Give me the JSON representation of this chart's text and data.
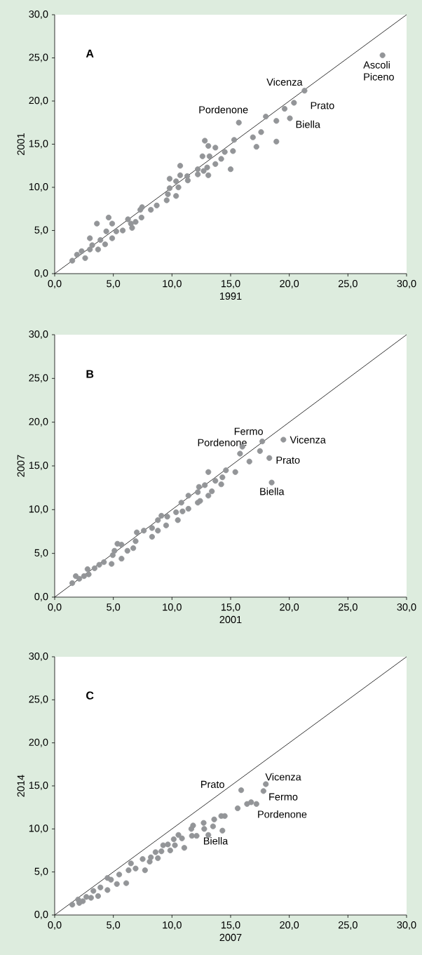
{
  "chart_data": [
    {
      "type": "scatter",
      "title": "A",
      "xlabel": "1991",
      "ylabel": "2001",
      "xlim": [
        0,
        30
      ],
      "ylim": [
        0,
        30
      ],
      "marker": "circle",
      "xticks": [
        {
          "value": 0,
          "label": "0,0"
        },
        {
          "value": 5,
          "label": "5,0"
        },
        {
          "value": 10,
          "label": "10,0"
        },
        {
          "value": 15,
          "label": "15,0"
        },
        {
          "value": 20,
          "label": "20,0"
        },
        {
          "value": 25,
          "label": "25,0"
        },
        {
          "value": 30,
          "label": "30,0"
        }
      ],
      "yticks": [
        {
          "value": 0,
          "label": "0,0"
        },
        {
          "value": 5,
          "label": "5,0"
        },
        {
          "value": 10,
          "label": "10,0"
        },
        {
          "value": 15,
          "label": "15,0"
        },
        {
          "value": 20,
          "label": "20,0"
        },
        {
          "value": 25,
          "label": "25,0"
        },
        {
          "value": 30,
          "label": "30,0"
        }
      ],
      "series": [
        {
          "color": "#939598",
          "x": [
            27.95,
            21.3,
            20.4,
            19.6,
            20.05,
            18.9,
            18.0,
            15.7,
            15.3,
            17.6,
            16.9,
            17.2,
            18.9,
            15.2,
            15.0,
            14.5,
            14.2,
            13.7,
            13.7,
            13.1,
            12.8,
            12.6,
            13.2,
            13.0,
            13.1,
            12.2,
            12.2,
            12.7,
            11.3,
            11.35,
            10.7,
            10.7,
            9.8,
            10.35,
            10.55,
            9.8,
            10.35,
            9.65,
            9.55,
            8.7,
            8.2,
            7.45,
            7.3,
            7.4,
            6.9,
            6.6,
            6.25,
            6.5,
            5.8,
            5.25,
            4.9,
            4.6,
            4.4,
            4.9,
            4.3,
            3.9,
            3.6,
            3.7,
            3.0,
            3.0,
            2.6,
            2.3,
            1.9,
            1.5,
            3.2
          ],
          "values": [
            25.3,
            21.2,
            19.8,
            19.1,
            18.0,
            17.7,
            18.2,
            17.5,
            15.5,
            16.4,
            15.8,
            14.7,
            15.3,
            14.2,
            12.1,
            14.1,
            13.3,
            14.6,
            12.7,
            14.8,
            15.4,
            13.6,
            13.6,
            12.3,
            11.4,
            12.1,
            11.5,
            11.9,
            11.3,
            10.8,
            12.5,
            11.4,
            11.0,
            10.7,
            10.0,
            9.9,
            9.0,
            9.2,
            8.5,
            7.9,
            7.4,
            7.7,
            7.4,
            6.5,
            6.0,
            5.3,
            6.3,
            5.8,
            5.0,
            4.9,
            5.8,
            6.5,
            4.9,
            4.1,
            3.4,
            3.9,
            5.8,
            2.8,
            4.1,
            2.8,
            1.8,
            2.6,
            2.2,
            1.5,
            3.3
          ]
        },
        {
          "type": "line",
          "color": "#000000",
          "marker": "none",
          "x": [
            0,
            30
          ],
          "values": [
            0,
            30
          ]
        }
      ],
      "annotations": [
        {
          "text": "Ascoli Piceno",
          "x": 27.95,
          "y": 25.3
        },
        {
          "text": "Vicenza",
          "x": 21.3,
          "y": 21.2
        },
        {
          "text": "Prato",
          "x": 20.4,
          "y": 19.8
        },
        {
          "text": "Biella",
          "x": 20.1,
          "y": 18.0
        },
        {
          "text": "Pordenone",
          "x": 15.7,
          "y": 17.5
        }
      ]
    },
    {
      "type": "scatter",
      "title": "B",
      "xlabel": "2001",
      "ylabel": "2007",
      "xlim": [
        0,
        30
      ],
      "ylim": [
        0,
        30
      ],
      "marker": "circle",
      "xticks": [
        {
          "value": 0,
          "label": "0,0"
        },
        {
          "value": 5,
          "label": "5,0"
        },
        {
          "value": 10,
          "label": "10,0"
        },
        {
          "value": 15,
          "label": "15,0"
        },
        {
          "value": 20,
          "label": "20,0"
        },
        {
          "value": 25,
          "label": "25,0"
        },
        {
          "value": 30,
          "label": "30,0"
        }
      ],
      "yticks": [
        {
          "value": 0,
          "label": "0,0"
        },
        {
          "value": 5,
          "label": "5,0"
        },
        {
          "value": 10,
          "label": "10,0"
        },
        {
          "value": 15,
          "label": "15,0"
        },
        {
          "value": 20,
          "label": "20,0"
        },
        {
          "value": 25,
          "label": "25,0"
        },
        {
          "value": 30,
          "label": "30,0"
        }
      ],
      "series": [
        {
          "color": "#939598",
          "x": [
            19.5,
            17.7,
            16.0,
            15.8,
            17.5,
            16.6,
            18.3,
            18.5,
            15.4,
            14.6,
            13.1,
            14.3,
            13.7,
            14.2,
            12.8,
            12.3,
            12.2,
            13.4,
            13.1,
            11.4,
            12.4,
            12.2,
            10.8,
            11.4,
            10.9,
            10.35,
            10.5,
            9.6,
            9.1,
            8.8,
            9.5,
            8.8,
            8.3,
            7.6,
            7.0,
            8.3,
            6.9,
            6.7,
            6.2,
            5.7,
            5.35,
            5.1,
            5.7,
            4.95,
            4.85,
            4.2,
            3.8,
            3.4,
            2.8,
            2.9,
            2.5,
            1.8,
            2.1,
            1.5
          ],
          "values": [
            18.0,
            17.8,
            17.2,
            16.4,
            16.7,
            15.5,
            15.9,
            13.1,
            14.3,
            14.5,
            14.3,
            13.7,
            13.3,
            12.9,
            12.8,
            12.6,
            12.0,
            12.1,
            11.6,
            11.6,
            11.0,
            10.8,
            10.8,
            10.1,
            9.8,
            9.7,
            8.8,
            9.2,
            9.3,
            8.8,
            8.2,
            7.6,
            7.9,
            7.6,
            7.4,
            6.9,
            6.4,
            5.6,
            5.3,
            6.0,
            6.1,
            5.3,
            4.4,
            4.8,
            3.8,
            4.0,
            3.7,
            3.3,
            3.2,
            2.6,
            2.4,
            2.4,
            2.1,
            1.6
          ]
        },
        {
          "type": "line",
          "color": "#000000",
          "marker": "none",
          "x": [
            0,
            30
          ],
          "values": [
            0,
            30
          ]
        }
      ],
      "annotations": [
        {
          "text": "Vicenza",
          "x": 19.5,
          "y": 18.0
        },
        {
          "text": "Fermo",
          "x": 17.7,
          "y": 17.8
        },
        {
          "text": "Pordenone",
          "x": 16.0,
          "y": 17.2
        },
        {
          "text": "Prato",
          "x": 18.3,
          "y": 15.9
        },
        {
          "text": "Biella",
          "x": 18.5,
          "y": 13.1
        }
      ]
    },
    {
      "type": "scatter",
      "title": "C",
      "xlabel": "2007",
      "ylabel": "2014",
      "xlim": [
        0,
        30
      ],
      "ylim": [
        0,
        30
      ],
      "marker": "circle",
      "xticks": [
        {
          "value": 0,
          "label": "0,0"
        },
        {
          "value": 5,
          "label": "5,0"
        },
        {
          "value": 10,
          "label": "10,0"
        },
        {
          "value": 15,
          "label": "15,0"
        },
        {
          "value": 20,
          "label": "20,0"
        },
        {
          "value": 25,
          "label": "25,0"
        },
        {
          "value": 30,
          "label": "30,0"
        }
      ],
      "yticks": [
        {
          "value": 0,
          "label": "0,0"
        },
        {
          "value": 5,
          "label": "5,0"
        },
        {
          "value": 10,
          "label": "10,0"
        },
        {
          "value": 15,
          "label": "15,0"
        },
        {
          "value": 20,
          "label": "20,0"
        },
        {
          "value": 25,
          "label": "25,0"
        },
        {
          "value": 30,
          "label": "30,0"
        }
      ],
      "series": [
        {
          "color": "#939598",
          "x": [
            18.0,
            17.8,
            15.9,
            16.4,
            16.75,
            17.2,
            15.6,
            14.5,
            14.2,
            13.6,
            14.3,
            13.5,
            12.7,
            13.1,
            12.75,
            11.8,
            11.65,
            12.1,
            11.7,
            11.05,
            10.55,
            10.85,
            10.15,
            10.25,
            9.65,
            9.25,
            9.85,
            9.1,
            8.6,
            8.8,
            8.2,
            8.1,
            7.5,
            7.7,
            6.9,
            6.5,
            6.3,
            6.1,
            5.5,
            5.3,
            4.8,
            4.5,
            4.5,
            3.9,
            3.7,
            3.3,
            3.1,
            2.7,
            2.4,
            2.0,
            1.5,
            2.1
          ],
          "values": [
            15.2,
            14.4,
            14.5,
            12.9,
            13.1,
            12.9,
            12.4,
            11.5,
            11.5,
            11.1,
            9.8,
            10.3,
            10.7,
            9.3,
            10.0,
            10.4,
            10.0,
            9.2,
            9.2,
            7.8,
            9.3,
            8.9,
            8.8,
            8.1,
            8.2,
            8.1,
            7.5,
            7.4,
            7.3,
            6.6,
            6.7,
            6.2,
            6.5,
            5.2,
            5.4,
            6.0,
            5.2,
            3.7,
            4.7,
            3.6,
            4.1,
            4.3,
            2.9,
            3.2,
            2.2,
            2.8,
            2.0,
            2.1,
            1.6,
            1.8,
            1.2,
            1.4
          ]
        },
        {
          "type": "line",
          "color": "#000000",
          "marker": "none",
          "x": [
            0,
            30
          ],
          "values": [
            0,
            30
          ]
        }
      ],
      "annotations": [
        {
          "text": "Vicenza",
          "x": 18.0,
          "y": 15.2
        },
        {
          "text": "Prato",
          "x": 15.9,
          "y": 14.5
        },
        {
          "text": "Fermo",
          "x": 17.8,
          "y": 14.4
        },
        {
          "text": "Pordenone",
          "x": 17.2,
          "y": 12.9
        },
        {
          "text": "Biella",
          "x": 14.3,
          "y": 9.8
        }
      ]
    }
  ]
}
